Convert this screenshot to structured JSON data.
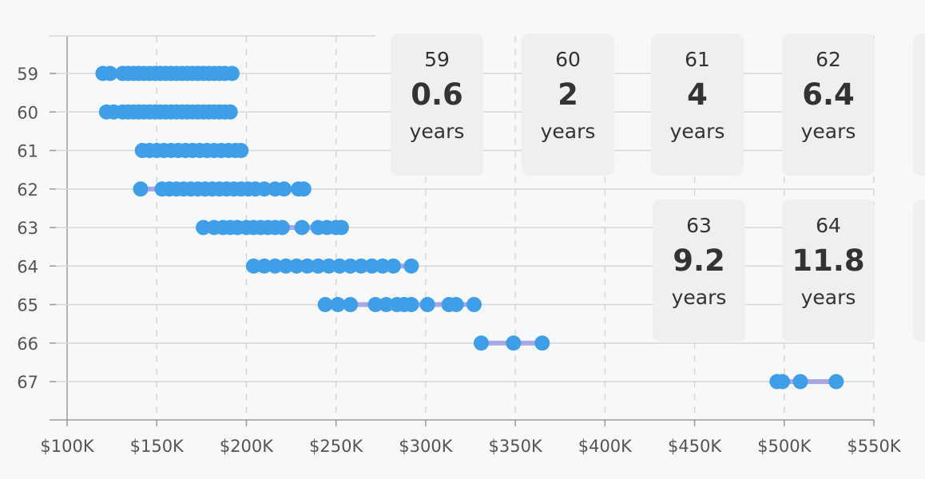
{
  "chart_data": {
    "type": "scatter",
    "description_style": "dumbbell / range dot plot",
    "y_categories": [
      "59",
      "60",
      "61",
      "62",
      "63",
      "64",
      "65",
      "66",
      "67"
    ],
    "x_ticks": [
      "$100K",
      "$150K",
      "$200K",
      "$250K",
      "$300K",
      "$350K",
      "$400K",
      "$450K",
      "$500K",
      "$550K"
    ],
    "xlim": [
      100000,
      550000
    ],
    "grid": true,
    "colors": {
      "point": "#3f9ee8",
      "range_line": "#a9a6e6",
      "grid_solid": "#d6d6d6",
      "grid_dashed": "#cfcfcf",
      "axis": "#9a9a9a",
      "tick_text": "#555555"
    },
    "series": [
      {
        "age": "59",
        "values": [
          120000,
          124000,
          131000,
          134000,
          137000,
          140000,
          143000,
          146000,
          149000,
          152000,
          155000,
          158000,
          161000,
          164000,
          167000,
          170000,
          173000,
          176000,
          179000,
          182000,
          185000,
          188000,
          192000
        ]
      },
      {
        "age": "60",
        "values": [
          122000,
          126000,
          131000,
          134000,
          137000,
          140000,
          143000,
          146000,
          149000,
          152000,
          155000,
          158000,
          161000,
          164000,
          167000,
          170000,
          173000,
          176000,
          179000,
          182000,
          185000,
          188000,
          191000
        ]
      },
      {
        "age": "61",
        "values": [
          142000,
          146000,
          150000,
          154000,
          158000,
          162000,
          166000,
          170000,
          174000,
          178000,
          182000,
          186000,
          190000,
          194000,
          197000
        ]
      },
      {
        "age": "62",
        "values": [
          141000,
          153000,
          157000,
          161000,
          165000,
          169000,
          173000,
          177000,
          181000,
          185000,
          189000,
          193000,
          197000,
          201000,
          205000,
          210000,
          216000,
          221000,
          229000,
          232000
        ]
      },
      {
        "age": "63",
        "values": [
          176000,
          182000,
          187000,
          191000,
          195000,
          200000,
          204000,
          208000,
          212000,
          216000,
          220000,
          231000,
          240000,
          245000,
          250000,
          253000
        ]
      },
      {
        "age": "64",
        "values": [
          204000,
          210000,
          216000,
          222000,
          228000,
          234000,
          240000,
          246000,
          252000,
          258000,
          264000,
          270000,
          276000,
          282000,
          292000
        ]
      },
      {
        "age": "65",
        "values": [
          244000,
          251000,
          258000,
          272000,
          278000,
          284000,
          288000,
          292000,
          301000,
          313000,
          317000,
          327000
        ]
      },
      {
        "age": "66",
        "values": [
          331000,
          349000,
          365000
        ]
      },
      {
        "age": "67",
        "values": [
          496000,
          499000,
          509000,
          529000
        ]
      }
    ]
  },
  "cards": [
    {
      "age": "59",
      "value": "0.6",
      "unit": "years"
    },
    {
      "age": "60",
      "value": "2",
      "unit": "years"
    },
    {
      "age": "61",
      "value": "4",
      "unit": "years"
    },
    {
      "age": "62",
      "value": "6.4",
      "unit": "years"
    },
    {
      "age": "63",
      "value": "9.2",
      "unit": "years"
    },
    {
      "age": "64",
      "value": "11.8",
      "unit": "years"
    }
  ]
}
